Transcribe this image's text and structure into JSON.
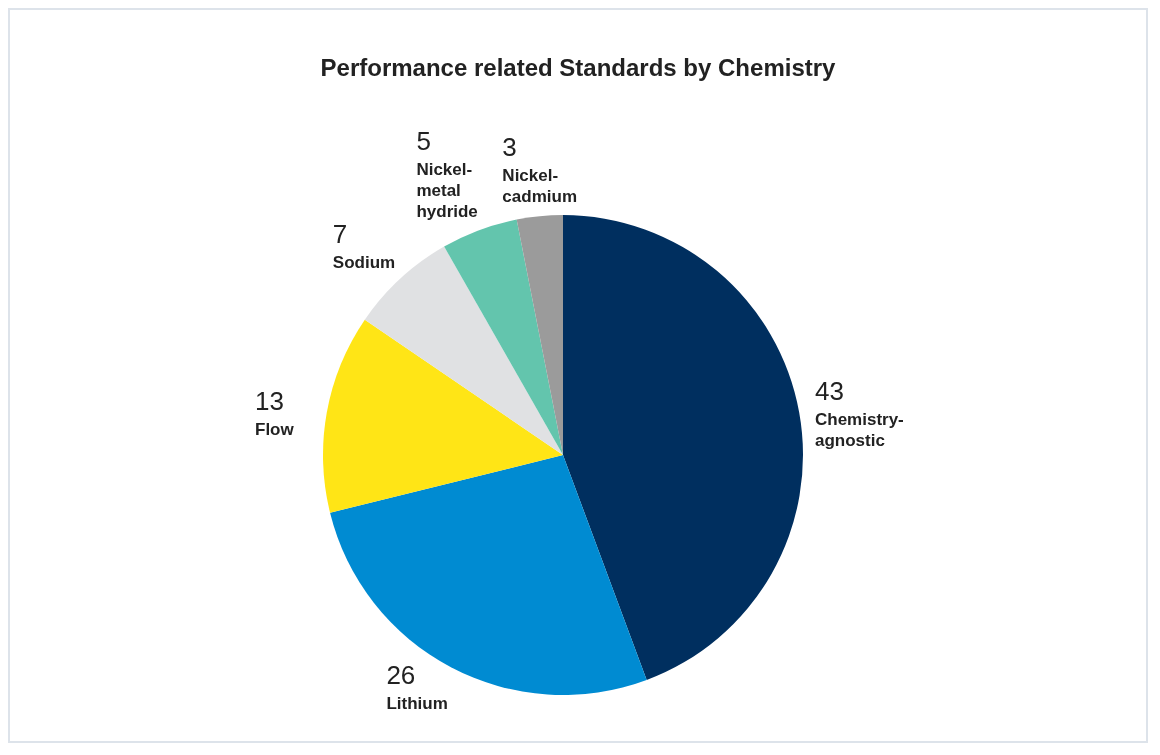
{
  "chart_data": {
    "type": "pie",
    "title": "Performance related Standards by Chemistry",
    "categories": [
      "Chemistry-agnostic",
      "Lithium",
      "Flow",
      "Sodium",
      "Nickel-metal hydride",
      "Nickel-cadmium"
    ],
    "values": [
      43,
      26,
      13,
      7,
      5,
      3
    ],
    "colors": [
      "#002f5f",
      "#008bd2",
      "#ffe516",
      "#e0e1e3",
      "#63c5ad",
      "#9b9b9b"
    ],
    "data_labels": true,
    "legend": false
  }
}
